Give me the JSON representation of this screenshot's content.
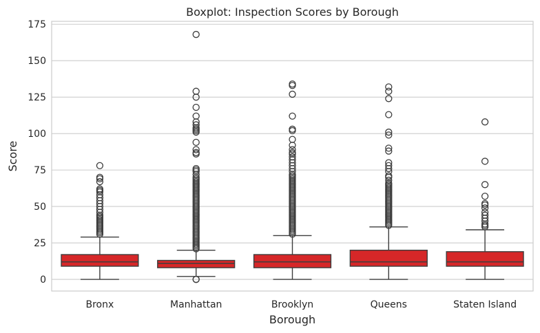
{
  "chart_data": {
    "type": "box",
    "title": "Boxplot: Inspection Scores by Borough",
    "xlabel": "Borough",
    "ylabel": "Score",
    "ylim": [
      -8,
      177
    ],
    "yticks": [
      0,
      25,
      50,
      75,
      100,
      125,
      150,
      175
    ],
    "grid": true,
    "box_color": "#d62728",
    "line_color": "#3d3d3d",
    "categories": [
      "Bronx",
      "Manhattan",
      "Brooklyn",
      "Queens",
      "Staten Island"
    ],
    "boxes": [
      {
        "category": "Bronx",
        "whislo": 0,
        "q1": 9,
        "med": 12,
        "q3": 17,
        "whishi": 29,
        "fliers": [
          31,
          32,
          33,
          34,
          35,
          36,
          37,
          38,
          39,
          40,
          41,
          42,
          43,
          44,
          46,
          48,
          50,
          52,
          54,
          56,
          58,
          60,
          61,
          62,
          67,
          69,
          70,
          78
        ]
      },
      {
        "category": "Manhattan",
        "whislo": 2,
        "q1": 8,
        "med": 11,
        "q3": 13,
        "whishi": 20,
        "fliers": [
          0,
          0,
          21,
          22,
          23,
          24,
          25,
          26,
          27,
          28,
          29,
          30,
          31,
          32,
          33,
          34,
          35,
          36,
          37,
          38,
          39,
          40,
          41,
          42,
          43,
          44,
          45,
          46,
          47,
          48,
          49,
          50,
          51,
          52,
          53,
          54,
          55,
          56,
          57,
          58,
          59,
          60,
          61,
          62,
          63,
          64,
          65,
          66,
          67,
          68,
          69,
          70,
          72,
          74,
          75,
          76,
          86,
          87,
          89,
          94,
          101,
          102,
          103,
          104,
          106,
          108,
          112,
          118,
          125,
          129,
          168
        ]
      },
      {
        "category": "Brooklyn",
        "whislo": 0,
        "q1": 8,
        "med": 12,
        "q3": 17,
        "whishi": 30,
        "fliers": [
          31,
          32,
          33,
          34,
          35,
          36,
          37,
          38,
          39,
          40,
          41,
          42,
          43,
          44,
          45,
          46,
          47,
          48,
          49,
          50,
          51,
          52,
          53,
          54,
          55,
          56,
          57,
          58,
          59,
          60,
          61,
          62,
          63,
          64,
          65,
          66,
          67,
          68,
          69,
          70,
          71,
          72,
          74,
          76,
          78,
          80,
          82,
          84,
          86,
          87,
          89,
          92,
          96,
          102,
          103,
          112,
          127,
          133,
          134
        ]
      },
      {
        "category": "Queens",
        "whislo": 0,
        "q1": 9,
        "med": 12,
        "q3": 20,
        "whishi": 36,
        "fliers": [
          37,
          38,
          39,
          40,
          41,
          42,
          43,
          44,
          45,
          46,
          47,
          48,
          49,
          50,
          51,
          52,
          53,
          54,
          55,
          56,
          57,
          58,
          59,
          60,
          61,
          62,
          63,
          64,
          65,
          66,
          68,
          70,
          71,
          74,
          76,
          78,
          80,
          88,
          90,
          99,
          101,
          113,
          124,
          129,
          132
        ]
      },
      {
        "category": "Staten Island",
        "whislo": 0,
        "q1": 9,
        "med": 12,
        "q3": 19,
        "whishi": 34,
        "fliers": [
          36,
          37,
          38,
          40,
          42,
          44,
          46,
          49,
          51,
          52,
          57,
          65,
          81,
          108
        ]
      }
    ]
  }
}
